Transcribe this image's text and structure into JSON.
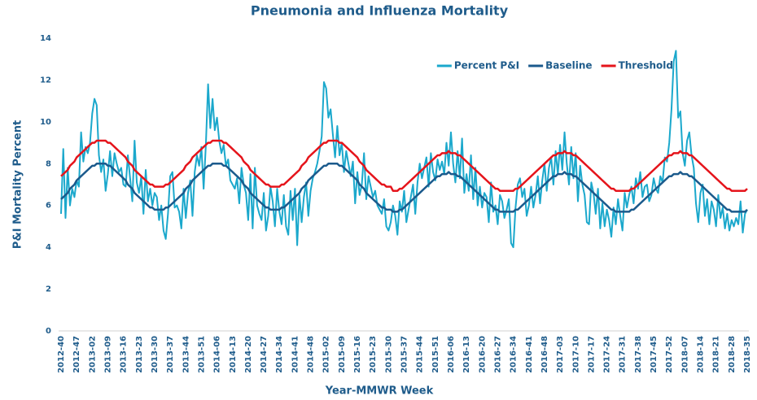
{
  "chart_data": {
    "type": "line",
    "title": "Pneumonia and Influenza Mortality",
    "x_label": "Year-MMWR Week",
    "y_label": "P&I Mortality Percent",
    "ylim": [
      0,
      14
    ],
    "yticks": [
      0,
      2,
      4,
      6,
      8,
      10,
      12,
      14
    ],
    "grid": false,
    "legend": "top-right",
    "categories": [
      "2012-40",
      null,
      null,
      null,
      null,
      null,
      null,
      "2012-47",
      null,
      null,
      null,
      null,
      null,
      null,
      "2013-02",
      null,
      null,
      null,
      null,
      null,
      null,
      "2013-09",
      null,
      null,
      null,
      null,
      null,
      null,
      "2013-16",
      null,
      null,
      null,
      null,
      null,
      null,
      "2013-23",
      null,
      null,
      null,
      null,
      null,
      null,
      "2013-30",
      null,
      null,
      null,
      null,
      null,
      null,
      "2013-37",
      null,
      null,
      null,
      null,
      null,
      null,
      "2013-44",
      null,
      null,
      null,
      null,
      null,
      null,
      "2013-51",
      null,
      null,
      null,
      null,
      null,
      null,
      "2014-06",
      null,
      null,
      null,
      null,
      null,
      null,
      "2014-13",
      null,
      null,
      null,
      null,
      null,
      null,
      "2014-20",
      null,
      null,
      null,
      null,
      null,
      null,
      "2014-27",
      null,
      null,
      null,
      null,
      null,
      null,
      "2014-34",
      null,
      null,
      null,
      null,
      null,
      null,
      "2014-41",
      null,
      null,
      null,
      null,
      null,
      null,
      "2014-48",
      null,
      null,
      null,
      null,
      null,
      null,
      "2015-02",
      null,
      null,
      null,
      null,
      null,
      null,
      "2015-09",
      null,
      null,
      null,
      null,
      null,
      null,
      "2015-16",
      null,
      null,
      null,
      null,
      null,
      null,
      "2015-23",
      null,
      null,
      null,
      null,
      null,
      null,
      "2015-30",
      null,
      null,
      null,
      null,
      null,
      null,
      "2015-37",
      null,
      null,
      null,
      null,
      null,
      null,
      "2015-44",
      null,
      null,
      null,
      null,
      null,
      null,
      "2015-51",
      null,
      null,
      null,
      null,
      null,
      null,
      "2016-06",
      null,
      null,
      null,
      null,
      null,
      null,
      "2016-13",
      null,
      null,
      null,
      null,
      null,
      null,
      "2016-20",
      null,
      null,
      null,
      null,
      null,
      null,
      "2016-27",
      null,
      null,
      null,
      null,
      null,
      null,
      "2016-34",
      null,
      null,
      null,
      null,
      null,
      null,
      "2016-41",
      null,
      null,
      null,
      null,
      null,
      null,
      "2016-48",
      null,
      null,
      null,
      null,
      null,
      null,
      "2017-03",
      null,
      null,
      null,
      null,
      null,
      null,
      "2017-10",
      null,
      null,
      null,
      null,
      null,
      null,
      "2017-17",
      null,
      null,
      null,
      null,
      null,
      null,
      "2017-24",
      null,
      null,
      null,
      null,
      null,
      null,
      "2017-31",
      null,
      null,
      null,
      null,
      null,
      null,
      "2017-38",
      null,
      null,
      null,
      null,
      null,
      null,
      "2017-45",
      null,
      null,
      null,
      null,
      null,
      null,
      "2017-52",
      null,
      null,
      null,
      null,
      null,
      null,
      "2018-07",
      null,
      null,
      null,
      null,
      null,
      null,
      "2018-14",
      null,
      null,
      null,
      null,
      null,
      null,
      "2018-21",
      null,
      null,
      null,
      null,
      null,
      null,
      "2018-28",
      null,
      null,
      null,
      null,
      null,
      null,
      "2018-35"
    ],
    "series": [
      {
        "name": "Percent P&I",
        "color": "#1ba8cc",
        "width": 2,
        "values": [
          5.6,
          8.7,
          5.4,
          7.8,
          6.0,
          6.8,
          6.4,
          7.2,
          6.9,
          9.5,
          8.1,
          8.8,
          8.5,
          9.0,
          10.4,
          11.1,
          10.8,
          8.4,
          7.6,
          8.2,
          6.7,
          7.5,
          8.6,
          7.4,
          8.5,
          8.0,
          7.6,
          7.8,
          7.0,
          6.9,
          8.4,
          7.3,
          6.2,
          9.1,
          7.1,
          6.6,
          7.4,
          5.6,
          7.7,
          6.2,
          6.8,
          6.0,
          6.6,
          6.4,
          5.3,
          6.0,
          4.8,
          4.4,
          5.6,
          7.4,
          7.6,
          5.9,
          6.0,
          5.7,
          4.9,
          6.8,
          5.4,
          6.6,
          7.2,
          5.5,
          7.6,
          8.4,
          7.9,
          8.8,
          6.8,
          8.9,
          11.8,
          9.7,
          11.1,
          9.6,
          10.2,
          9.1,
          8.5,
          8.9,
          7.9,
          8.2,
          7.2,
          7.0,
          6.8,
          7.3,
          6.1,
          7.8,
          7.0,
          6.6,
          5.3,
          7.5,
          4.9,
          7.8,
          6.0,
          5.6,
          5.3,
          6.6,
          4.8,
          5.5,
          6.9,
          6.2,
          5.0,
          6.8,
          5.7,
          5.1,
          6.5,
          5.0,
          4.6,
          6.7,
          5.3,
          6.8,
          4.1,
          6.5,
          5.2,
          6.4,
          7.1,
          5.5,
          6.7,
          7.3,
          7.6,
          8.0,
          8.6,
          9.3,
          11.9,
          11.6,
          10.2,
          10.6,
          9.4,
          8.3,
          9.8,
          8.4,
          9.0,
          7.6,
          8.6,
          8.0,
          7.4,
          8.1,
          6.1,
          7.6,
          6.5,
          7.0,
          8.5,
          6.3,
          7.4,
          6.9,
          6.4,
          6.7,
          6.0,
          5.8,
          5.6,
          6.3,
          5.0,
          4.8,
          5.2,
          6.0,
          5.5,
          4.6,
          6.2,
          5.7,
          6.7,
          5.2,
          5.8,
          6.4,
          7.0,
          5.6,
          7.1,
          8.0,
          7.3,
          7.8,
          8.3,
          6.9,
          8.5,
          7.6,
          7.2,
          8.2,
          7.7,
          8.1,
          7.5,
          9.0,
          7.9,
          9.5,
          8.0,
          7.1,
          8.6,
          7.3,
          9.2,
          6.6,
          7.5,
          6.7,
          8.4,
          6.3,
          7.8,
          6.0,
          6.9,
          5.9,
          6.6,
          6.4,
          5.2,
          7.1,
          5.7,
          6.0,
          5.1,
          6.5,
          6.2,
          5.4,
          5.8,
          6.3,
          4.2,
          4.0,
          5.9,
          7.0,
          7.3,
          6.4,
          6.8,
          5.5,
          6.0,
          6.9,
          5.9,
          6.5,
          7.4,
          6.1,
          7.2,
          8.0,
          6.7,
          7.8,
          8.3,
          7.0,
          8.6,
          7.5,
          8.9,
          7.7,
          9.5,
          8.0,
          7.0,
          8.8,
          7.3,
          8.5,
          6.2,
          7.9,
          7.0,
          6.5,
          5.2,
          5.1,
          7.1,
          6.6,
          5.6,
          6.8,
          4.9,
          6.1,
          5.0,
          5.8,
          5.3,
          4.5,
          5.9,
          5.1,
          6.3,
          5.5,
          4.8,
          6.6,
          5.9,
          6.5,
          6.9,
          6.1,
          7.3,
          6.8,
          7.6,
          6.4,
          6.9,
          7.0,
          6.2,
          6.5,
          7.3,
          6.8,
          6.6,
          7.4,
          7.1,
          8.3,
          8.1,
          9.0,
          10.6,
          12.9,
          13.4,
          10.2,
          10.5,
          8.5,
          7.9,
          9.1,
          9.5,
          8.4,
          7.8,
          6.1,
          5.2,
          6.6,
          7.0,
          5.5,
          6.3,
          5.1,
          6.2,
          5.8,
          5.0,
          6.5,
          5.4,
          5.9,
          4.9,
          5.6,
          4.8,
          5.3,
          5.0,
          5.4,
          5.1,
          6.2,
          4.7,
          5.6,
          5.8
        ]
      },
      {
        "name": "Baseline",
        "color": "#1b5a8c",
        "width": 2.5,
        "values": [
          6.3,
          6.4,
          6.5,
          6.6,
          6.8,
          6.9,
          7.0,
          7.2,
          7.3,
          7.4,
          7.5,
          7.6,
          7.7,
          7.8,
          7.9,
          7.9,
          8.0,
          8.0,
          8.0,
          8.0,
          8.0,
          7.9,
          7.9,
          7.8,
          7.7,
          7.6,
          7.5,
          7.4,
          7.3,
          7.2,
          7.0,
          6.9,
          6.8,
          6.6,
          6.5,
          6.4,
          6.3,
          6.2,
          6.1,
          6.0,
          5.9,
          5.9,
          5.8,
          5.8,
          5.8,
          5.8,
          5.8,
          5.9,
          5.9,
          6.0,
          6.1,
          6.2,
          6.3,
          6.4,
          6.5,
          6.6,
          6.8,
          6.9,
          7.0,
          7.2,
          7.3,
          7.4,
          7.5,
          7.6,
          7.7,
          7.8,
          7.9,
          7.9,
          8.0,
          8.0,
          8.0,
          8.0,
          8.0,
          7.9,
          7.9,
          7.8,
          7.7,
          7.6,
          7.5,
          7.4,
          7.3,
          7.2,
          7.0,
          6.9,
          6.8,
          6.6,
          6.5,
          6.4,
          6.3,
          6.2,
          6.1,
          6.0,
          5.9,
          5.9,
          5.8,
          5.8,
          5.8,
          5.8,
          5.8,
          5.9,
          5.9,
          6.0,
          6.1,
          6.2,
          6.3,
          6.4,
          6.5,
          6.6,
          6.8,
          6.9,
          7.0,
          7.2,
          7.3,
          7.4,
          7.5,
          7.6,
          7.7,
          7.8,
          7.9,
          7.9,
          8.0,
          8.0,
          8.0,
          8.0,
          8.0,
          7.9,
          7.9,
          7.8,
          7.7,
          7.6,
          7.5,
          7.4,
          7.3,
          7.2,
          7.0,
          6.9,
          6.8,
          6.6,
          6.5,
          6.4,
          6.3,
          6.2,
          6.1,
          6.0,
          5.9,
          5.9,
          5.8,
          5.8,
          5.8,
          5.7,
          5.7,
          5.7,
          5.8,
          5.8,
          5.9,
          6.0,
          6.1,
          6.2,
          6.3,
          6.4,
          6.5,
          6.6,
          6.7,
          6.8,
          6.9,
          7.0,
          7.1,
          7.2,
          7.3,
          7.4,
          7.4,
          7.5,
          7.5,
          7.5,
          7.6,
          7.5,
          7.5,
          7.5,
          7.4,
          7.4,
          7.3,
          7.2,
          7.1,
          7.0,
          6.9,
          6.8,
          6.7,
          6.6,
          6.5,
          6.4,
          6.3,
          6.2,
          6.1,
          6.0,
          5.9,
          5.8,
          5.8,
          5.7,
          5.7,
          5.7,
          5.7,
          5.7,
          5.7,
          5.7,
          5.8,
          5.8,
          5.9,
          6.0,
          6.1,
          6.2,
          6.3,
          6.4,
          6.5,
          6.6,
          6.7,
          6.8,
          6.9,
          7.0,
          7.1,
          7.2,
          7.3,
          7.4,
          7.4,
          7.5,
          7.5,
          7.5,
          7.6,
          7.5,
          7.5,
          7.5,
          7.4,
          7.4,
          7.3,
          7.2,
          7.1,
          7.0,
          6.9,
          6.8,
          6.7,
          6.6,
          6.5,
          6.4,
          6.3,
          6.2,
          6.1,
          6.0,
          5.9,
          5.8,
          5.8,
          5.7,
          5.7,
          5.7,
          5.7,
          5.7,
          5.7,
          5.7,
          5.8,
          5.8,
          5.9,
          6.0,
          6.1,
          6.2,
          6.3,
          6.4,
          6.5,
          6.6,
          6.7,
          6.8,
          6.9,
          7.0,
          7.1,
          7.2,
          7.3,
          7.4,
          7.4,
          7.5,
          7.5,
          7.5,
          7.6,
          7.5,
          7.5,
          7.5,
          7.4,
          7.4,
          7.3,
          7.2,
          7.1,
          7.0,
          6.9,
          6.8,
          6.7,
          6.6,
          6.5,
          6.4,
          6.3,
          6.2,
          6.1,
          6.0,
          5.9,
          5.8,
          5.8,
          5.7,
          5.7,
          5.7,
          5.7,
          5.7,
          5.7,
          5.7,
          5.8
        ]
      },
      {
        "name": "Threshold",
        "color": "#e5141b",
        "width": 2.5,
        "values": [
          7.4,
          7.5,
          7.6,
          7.7,
          7.9,
          8.0,
          8.1,
          8.3,
          8.4,
          8.5,
          8.6,
          8.7,
          8.8,
          8.9,
          9.0,
          9.0,
          9.1,
          9.1,
          9.1,
          9.1,
          9.1,
          9.0,
          9.0,
          8.9,
          8.8,
          8.7,
          8.6,
          8.5,
          8.4,
          8.3,
          8.1,
          8.0,
          7.9,
          7.7,
          7.6,
          7.5,
          7.4,
          7.3,
          7.2,
          7.1,
          7.0,
          7.0,
          6.9,
          6.9,
          6.9,
          6.9,
          6.9,
          7.0,
          7.0,
          7.1,
          7.2,
          7.3,
          7.4,
          7.5,
          7.6,
          7.7,
          7.9,
          8.0,
          8.1,
          8.3,
          8.4,
          8.5,
          8.6,
          8.7,
          8.8,
          8.9,
          9.0,
          9.0,
          9.1,
          9.1,
          9.1,
          9.1,
          9.1,
          9.0,
          9.0,
          8.9,
          8.8,
          8.7,
          8.6,
          8.5,
          8.4,
          8.3,
          8.1,
          8.0,
          7.9,
          7.7,
          7.6,
          7.5,
          7.4,
          7.3,
          7.2,
          7.1,
          7.0,
          7.0,
          6.9,
          6.9,
          6.9,
          6.9,
          6.9,
          7.0,
          7.0,
          7.1,
          7.2,
          7.3,
          7.4,
          7.5,
          7.6,
          7.7,
          7.9,
          8.0,
          8.1,
          8.3,
          8.4,
          8.5,
          8.6,
          8.7,
          8.8,
          8.9,
          9.0,
          9.0,
          9.1,
          9.1,
          9.1,
          9.1,
          9.1,
          9.0,
          9.0,
          8.9,
          8.8,
          8.7,
          8.6,
          8.5,
          8.4,
          8.3,
          8.1,
          8.0,
          7.9,
          7.7,
          7.6,
          7.5,
          7.4,
          7.3,
          7.2,
          7.1,
          7.0,
          7.0,
          6.9,
          6.9,
          6.9,
          6.7,
          6.7,
          6.7,
          6.8,
          6.8,
          6.9,
          7.0,
          7.1,
          7.2,
          7.3,
          7.4,
          7.5,
          7.6,
          7.7,
          7.8,
          7.9,
          8.0,
          8.1,
          8.2,
          8.3,
          8.4,
          8.4,
          8.5,
          8.5,
          8.5,
          8.6,
          8.5,
          8.5,
          8.5,
          8.4,
          8.4,
          8.3,
          8.2,
          8.1,
          8.0,
          7.9,
          7.8,
          7.7,
          7.6,
          7.5,
          7.4,
          7.3,
          7.2,
          7.1,
          7.0,
          6.9,
          6.8,
          6.8,
          6.7,
          6.7,
          6.7,
          6.7,
          6.7,
          6.7,
          6.7,
          6.8,
          6.8,
          6.9,
          7.0,
          7.1,
          7.2,
          7.3,
          7.4,
          7.5,
          7.6,
          7.7,
          7.8,
          7.9,
          8.0,
          8.1,
          8.2,
          8.3,
          8.4,
          8.4,
          8.5,
          8.5,
          8.5,
          8.6,
          8.5,
          8.5,
          8.5,
          8.4,
          8.4,
          8.3,
          8.2,
          8.1,
          8.0,
          7.9,
          7.8,
          7.7,
          7.6,
          7.5,
          7.4,
          7.3,
          7.2,
          7.1,
          7.0,
          6.9,
          6.8,
          6.8,
          6.7,
          6.7,
          6.7,
          6.7,
          6.7,
          6.7,
          6.7,
          6.8,
          6.8,
          6.9,
          7.0,
          7.1,
          7.2,
          7.3,
          7.4,
          7.5,
          7.6,
          7.7,
          7.8,
          7.9,
          8.0,
          8.1,
          8.2,
          8.3,
          8.4,
          8.4,
          8.5,
          8.5,
          8.5,
          8.6,
          8.5,
          8.5,
          8.5,
          8.4,
          8.4,
          8.3,
          8.2,
          8.1,
          8.0,
          7.9,
          7.8,
          7.7,
          7.6,
          7.5,
          7.4,
          7.3,
          7.2,
          7.1,
          7.0,
          6.9,
          6.8,
          6.8,
          6.7,
          6.7,
          6.7,
          6.7,
          6.7,
          6.7,
          6.7,
          6.8
        ]
      }
    ]
  }
}
